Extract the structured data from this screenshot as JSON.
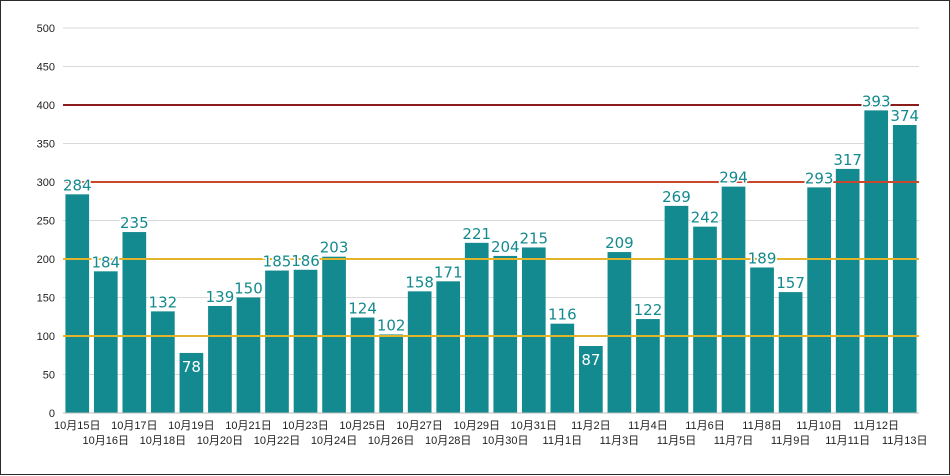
{
  "chart_data": {
    "type": "bar",
    "title": "",
    "xlabel": "",
    "ylabel": "",
    "ylim": [
      0,
      500
    ],
    "yticks": [
      0,
      50,
      100,
      150,
      200,
      250,
      300,
      350,
      400,
      450,
      500
    ],
    "grid": true,
    "legend": "none",
    "bar_color": "#138a8f",
    "categories": [
      "10月15日",
      "10月16日",
      "10月17日",
      "10月18日",
      "10月19日",
      "10月20日",
      "10月21日",
      "10月22日",
      "10月23日",
      "10月24日",
      "10月25日",
      "10月26日",
      "10月27日",
      "10月28日",
      "10月29日",
      "10月30日",
      "10月31日",
      "11月1日",
      "11月2日",
      "11月3日",
      "11月4日",
      "11月5日",
      "11月6日",
      "11月7日",
      "11月8日",
      "11月9日",
      "11月10日",
      "11月11日",
      "11月12日",
      "11月13日"
    ],
    "values": [
      284,
      184,
      235,
      132,
      78,
      139,
      150,
      185,
      186,
      203,
      124,
      102,
      158,
      171,
      221,
      204,
      215,
      116,
      87,
      209,
      122,
      269,
      242,
      294,
      189,
      157,
      293,
      317,
      393,
      374
    ],
    "reference_lines": [
      {
        "value": 100,
        "color": "#e3b42a"
      },
      {
        "value": 200,
        "color": "#e3b42a"
      },
      {
        "value": 300,
        "color": "#c8472d"
      },
      {
        "value": 400,
        "color": "#8c1c1c"
      }
    ]
  }
}
